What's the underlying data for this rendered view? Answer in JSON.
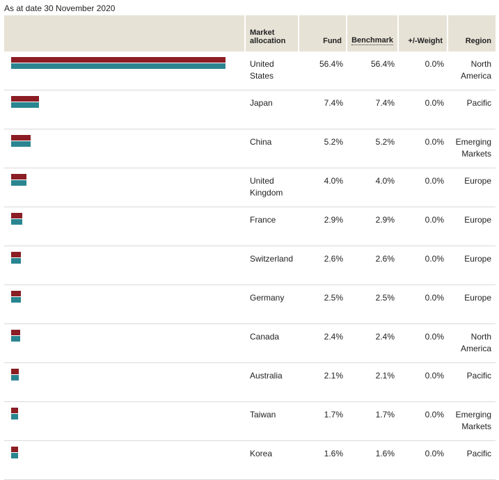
{
  "as_at_label": "As at date 30 November 2020",
  "headers": {
    "market": "Market allocation",
    "fund": "Fund",
    "benchmark": "Benchmark",
    "weight": "+/-Weight",
    "region": "Region"
  },
  "colors": {
    "fund_bar": "#8b1d24",
    "benchmark_bar": "#2a8590",
    "header_bg": "#e7e2d6"
  },
  "rows": [
    {
      "market": "United States",
      "fund": "56.4%",
      "benchmark": "56.4%",
      "weight": "0.0%",
      "region": "North America",
      "fund_value": 56.4,
      "benchmark_value": 56.4
    },
    {
      "market": "Japan",
      "fund": "7.4%",
      "benchmark": "7.4%",
      "weight": "0.0%",
      "region": "Pacific",
      "fund_value": 7.4,
      "benchmark_value": 7.4
    },
    {
      "market": "China",
      "fund": "5.2%",
      "benchmark": "5.2%",
      "weight": "0.0%",
      "region": "Emerging Markets",
      "fund_value": 5.2,
      "benchmark_value": 5.2
    },
    {
      "market": "United Kingdom",
      "fund": "4.0%",
      "benchmark": "4.0%",
      "weight": "0.0%",
      "region": "Europe",
      "fund_value": 4.0,
      "benchmark_value": 4.0
    },
    {
      "market": "France",
      "fund": "2.9%",
      "benchmark": "2.9%",
      "weight": "0.0%",
      "region": "Europe",
      "fund_value": 2.9,
      "benchmark_value": 2.9
    },
    {
      "market": "Switzerland",
      "fund": "2.6%",
      "benchmark": "2.6%",
      "weight": "0.0%",
      "region": "Europe",
      "fund_value": 2.6,
      "benchmark_value": 2.6
    },
    {
      "market": "Germany",
      "fund": "2.5%",
      "benchmark": "2.5%",
      "weight": "0.0%",
      "region": "Europe",
      "fund_value": 2.5,
      "benchmark_value": 2.5
    },
    {
      "market": "Canada",
      "fund": "2.4%",
      "benchmark": "2.4%",
      "weight": "0.0%",
      "region": "North America",
      "fund_value": 2.4,
      "benchmark_value": 2.4
    },
    {
      "market": "Australia",
      "fund": "2.1%",
      "benchmark": "2.1%",
      "weight": "0.0%",
      "region": "Pacific",
      "fund_value": 2.1,
      "benchmark_value": 2.1
    },
    {
      "market": "Taiwan",
      "fund": "1.7%",
      "benchmark": "1.7%",
      "weight": "0.0%",
      "region": "Emerging Markets",
      "fund_value": 1.7,
      "benchmark_value": 1.7
    },
    {
      "market": "Korea",
      "fund": "1.6%",
      "benchmark": "1.6%",
      "weight": "0.0%",
      "region": "Pacific",
      "fund_value": 1.6,
      "benchmark_value": 1.6
    }
  ]
}
